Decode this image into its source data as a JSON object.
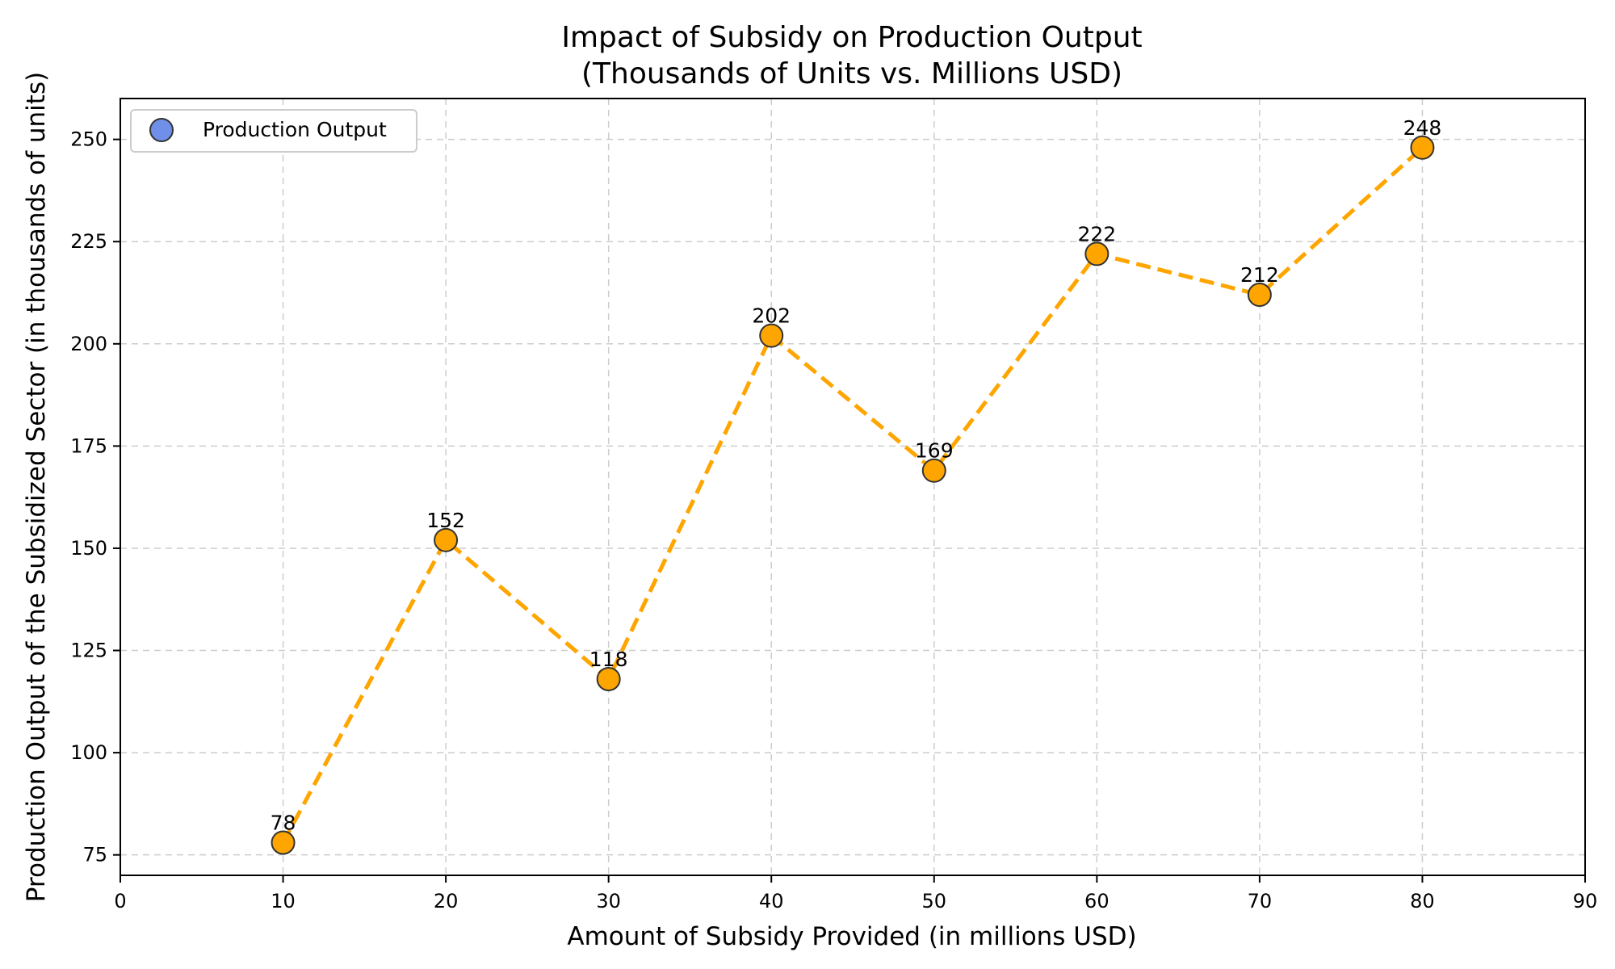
{
  "chart_data": {
    "type": "line",
    "title": "Impact of Subsidy on Production Output",
    "subtitle": "(Thousands of Units vs. Millions USD)",
    "xlabel": "Amount of Subsidy Provided (in millions USD)",
    "ylabel": "Production Output of the Subsidized Sector (in thousands of units)",
    "xlim": [
      0,
      90
    ],
    "ylim": [
      70,
      260
    ],
    "xticks": [
      0,
      10,
      20,
      30,
      40,
      50,
      60,
      70,
      80,
      90
    ],
    "yticks": [
      75,
      100,
      125,
      150,
      175,
      200,
      225,
      250
    ],
    "grid": true,
    "legend_position": "top-left",
    "series": [
      {
        "name": "Production Output",
        "x": [
          10,
          20,
          30,
          40,
          50,
          60,
          70,
          80
        ],
        "values": [
          78,
          152,
          118,
          202,
          169,
          222,
          212,
          248
        ],
        "line_color": "#FFA500",
        "marker_color": "#FFA500",
        "legend_marker_color": "#6F8FE8",
        "line_style": "dashed"
      }
    ]
  }
}
